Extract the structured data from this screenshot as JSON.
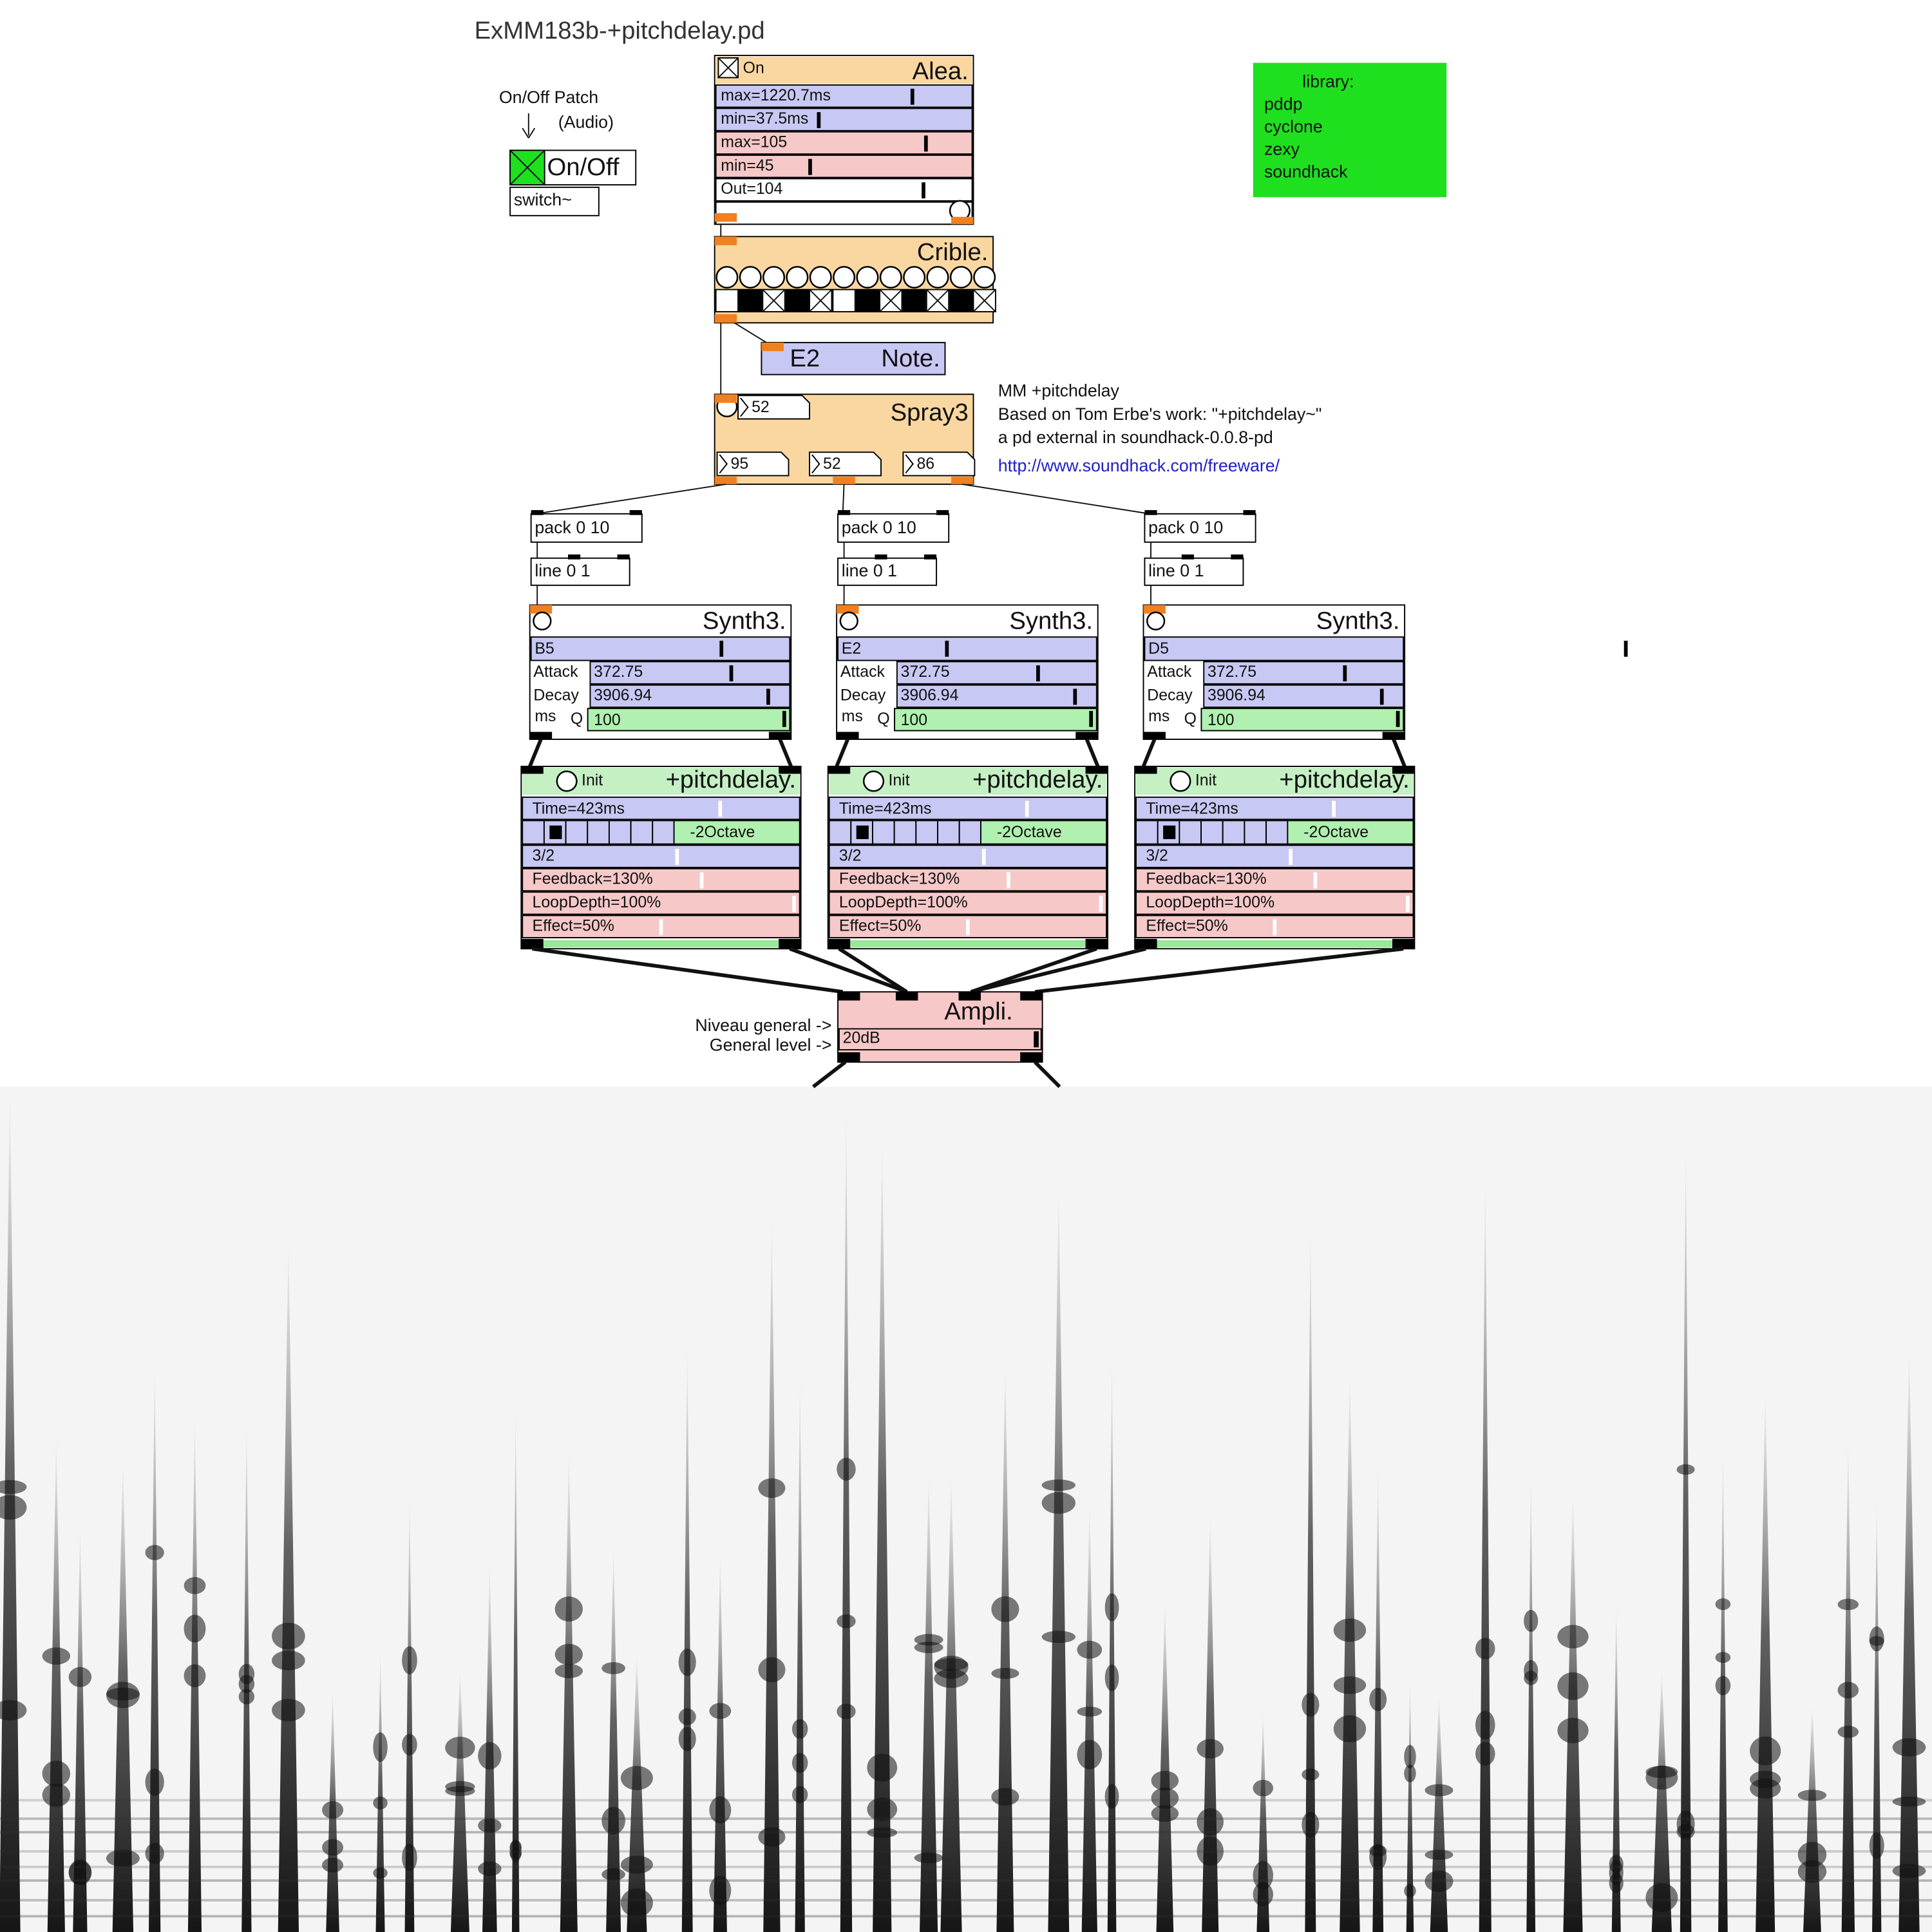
{
  "title": "ExMM183b-+pitchdelay.pd",
  "onoff": {
    "comment1": "On/Off Patch",
    "comment2": "(Audio)",
    "toggle": "On/Off",
    "object": "switch~"
  },
  "alea": {
    "title": "Alea.",
    "toggle": "On",
    "sliders": [
      "max=1220.7ms",
      "min=37.5ms",
      "max=105",
      "min=45",
      "Out=104"
    ]
  },
  "library": {
    "lines": [
      "library:",
      "pddp",
      "cyclone",
      "zexy",
      "soundhack"
    ]
  },
  "crible": {
    "title": "Crible."
  },
  "note": {
    "value": "E2",
    "title": "Note."
  },
  "spray": {
    "title": "Spray3",
    "numbers": [
      "52",
      "95",
      "52",
      "86"
    ]
  },
  "comment": {
    "lines": [
      "MM +pitchdelay",
      "Based on Tom Erbe's work: \"+pitchdelay~\"",
      "a pd external in soundhack-0.0.8-pd"
    ],
    "link": "http://www.soundhack.com/freeware/"
  },
  "voices": [
    {
      "pack": "pack 0 10",
      "line": "line 0 1",
      "synth": {
        "title": "Synth3.",
        "note": "B5",
        "attack_label": "Attack",
        "attack": "372.75",
        "decay_label": "Decay",
        "decay": "3906.94",
        "ms": "ms",
        "q": "Q",
        "q_value": "100"
      },
      "pitchdelay": {
        "init": "Init",
        "title": "+pitchdelay.",
        "time": "Time=423ms",
        "octave": "-2Octave",
        "ratio": "3/2",
        "feedback": "Feedback=130%",
        "loop": "LoopDepth=100%",
        "effect": "Effect=50%"
      }
    },
    {
      "pack": "pack 0 10",
      "line": "line 0 1",
      "synth": {
        "title": "Synth3.",
        "note": "E2",
        "attack_label": "Attack",
        "attack": "372.75",
        "decay_label": "Decay",
        "decay": "3906.94",
        "ms": "ms",
        "q": "Q",
        "q_value": "100"
      },
      "pitchdelay": {
        "init": "Init",
        "title": "+pitchdelay.",
        "time": "Time=423ms",
        "octave": "-2Octave",
        "ratio": "3/2",
        "feedback": "Feedback=130%",
        "loop": "LoopDepth=100%",
        "effect": "Effect=50%"
      }
    },
    {
      "pack": "pack 0 10",
      "line": "line 0 1",
      "synth": {
        "title": "Synth3.",
        "note": "D5",
        "attack_label": "Attack",
        "attack": "372.75",
        "decay_label": "Decay",
        "decay": "3906.94",
        "ms": "ms",
        "q": "Q",
        "q_value": "100"
      },
      "pitchdelay": {
        "init": "Init",
        "title": "+pitchdelay.",
        "time": "Time=423ms",
        "octave": "-2Octave",
        "ratio": "3/2",
        "feedback": "Feedback=130%",
        "loop": "LoopDepth=100%",
        "effect": "Effect=50%"
      }
    }
  ],
  "ampli": {
    "title": "Ampli.",
    "level": "20dB",
    "comment1": "Niveau general ->",
    "comment2": "General level ->"
  }
}
